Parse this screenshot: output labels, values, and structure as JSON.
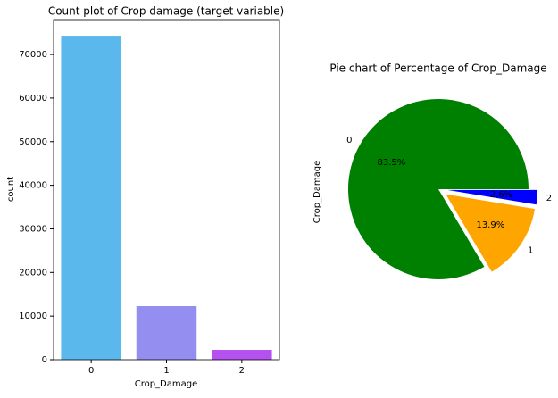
{
  "chart_data": [
    {
      "type": "bar",
      "title": "Count plot of Crop damage (target variable)",
      "x_label": "Crop_Damage",
      "y_label": "count",
      "categories": [
        "0",
        "1",
        "2"
      ],
      "values": [
        74300,
        12280,
        2250
      ],
      "colors": [
        "#5ab8ec",
        "#938ef0",
        "#b552ef"
      ],
      "ylim": [
        0,
        78000
      ],
      "yticks": [
        0,
        10000,
        20000,
        30000,
        40000,
        50000,
        60000,
        70000
      ]
    },
    {
      "type": "pie",
      "title": "Pie chart of Percentage of Crop_Damage",
      "y_label": "Crop_Damage",
      "categories": [
        "0",
        "1",
        "2"
      ],
      "values": [
        83.5,
        13.9,
        2.6
      ],
      "value_labels": [
        "83.5%",
        "13.9%",
        "2.6%"
      ],
      "colors": [
        "#008000",
        "#ffa500",
        "#0000ff"
      ],
      "explode": [
        0,
        0.1,
        0.1
      ]
    }
  ]
}
